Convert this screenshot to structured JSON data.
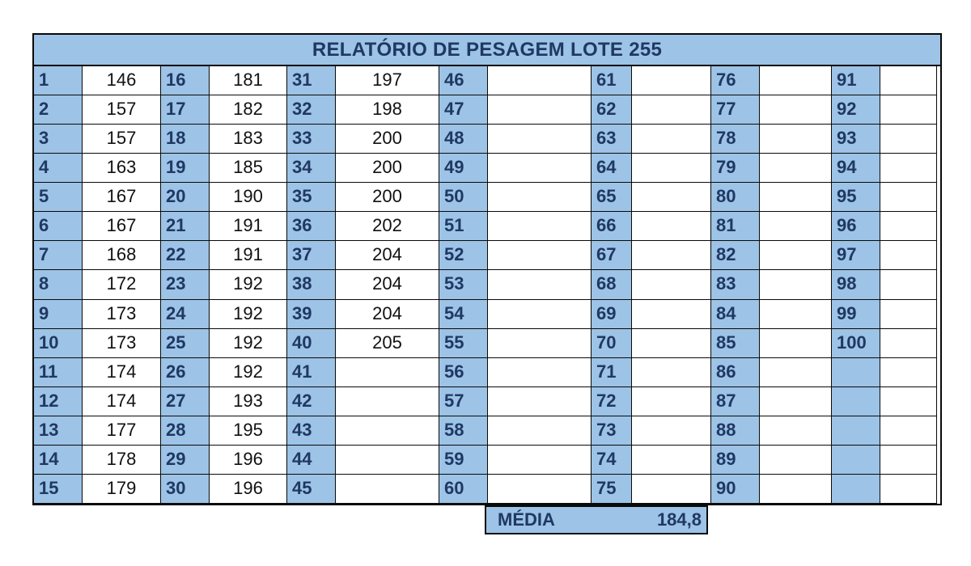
{
  "report": {
    "title": "RELATÓRIO DE PESAGEM LOTE 255",
    "rows_per_block": 15,
    "blocks": [
      {
        "numbers": [
          "1",
          "2",
          "3",
          "4",
          "5",
          "6",
          "7",
          "8",
          "9",
          "10",
          "11",
          "12",
          "13",
          "14",
          "15"
        ],
        "weights": [
          "146",
          "157",
          "157",
          "163",
          "167",
          "167",
          "168",
          "172",
          "173",
          "173",
          "174",
          "174",
          "177",
          "178",
          "179"
        ]
      },
      {
        "numbers": [
          "16",
          "17",
          "18",
          "19",
          "20",
          "21",
          "22",
          "23",
          "24",
          "25",
          "26",
          "27",
          "28",
          "29",
          "30"
        ],
        "weights": [
          "181",
          "182",
          "183",
          "185",
          "190",
          "191",
          "191",
          "192",
          "192",
          "192",
          "192",
          "193",
          "195",
          "196",
          "196"
        ]
      },
      {
        "numbers": [
          "31",
          "32",
          "33",
          "34",
          "35",
          "36",
          "37",
          "38",
          "39",
          "40",
          "41",
          "42",
          "43",
          "44",
          "45"
        ],
        "weights": [
          "197",
          "198",
          "200",
          "200",
          "200",
          "202",
          "204",
          "204",
          "204",
          "205",
          "",
          "",
          "",
          "",
          ""
        ]
      },
      {
        "numbers": [
          "46",
          "47",
          "48",
          "49",
          "50",
          "51",
          "52",
          "53",
          "54",
          "55",
          "56",
          "57",
          "58",
          "59",
          "60"
        ],
        "weights": [
          "",
          "",
          "",
          "",
          "",
          "",
          "",
          "",
          "",
          "",
          "",
          "",
          "",
          "",
          ""
        ]
      },
      {
        "numbers": [
          "61",
          "62",
          "63",
          "64",
          "65",
          "66",
          "67",
          "68",
          "69",
          "70",
          "71",
          "72",
          "73",
          "74",
          "75"
        ],
        "weights": [
          "",
          "",
          "",
          "",
          "",
          "",
          "",
          "",
          "",
          "",
          "",
          "",
          "",
          "",
          ""
        ]
      },
      {
        "numbers": [
          "76",
          "77",
          "78",
          "79",
          "80",
          "81",
          "82",
          "83",
          "84",
          "85",
          "86",
          "87",
          "88",
          "89",
          "90"
        ],
        "weights": [
          "",
          "",
          "",
          "",
          "",
          "",
          "",
          "",
          "",
          "",
          "",
          "",
          "",
          "",
          ""
        ]
      },
      {
        "numbers": [
          "91",
          "92",
          "93",
          "94",
          "95",
          "96",
          "97",
          "98",
          "99",
          "100",
          "",
          "",
          "",
          "",
          ""
        ],
        "weights": [
          "",
          "",
          "",
          "",
          "",
          "",
          "",
          "",
          "",
          "",
          "",
          "",
          "",
          "",
          ""
        ]
      }
    ]
  },
  "summary": {
    "label": "MÉDIA",
    "value": "184,8"
  },
  "colors": {
    "header_fill": "#9dc3e6",
    "number_text": "#1f3864",
    "grid_line": "#0a0a0a"
  }
}
